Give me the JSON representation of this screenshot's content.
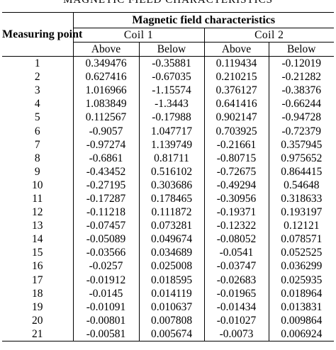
{
  "caption": "MAGNETIC FIELD CHARACTERISTICS",
  "header": {
    "point": "Measuring point",
    "group": "Magnetic field characteristics",
    "coil1": "Coil 1",
    "coil2": "Coil 2",
    "above": "Above",
    "below": "Below"
  },
  "rows": [
    [
      "1",
      "0.349476",
      "-0.35881",
      "0.119434",
      "-0.12019"
    ],
    [
      "2",
      "0.627416",
      "-0.67035",
      "0.210215",
      "-0.21282"
    ],
    [
      "3",
      "1.016966",
      "-1.15574",
      "0.376127",
      "-0.38376"
    ],
    [
      "4",
      "1.083849",
      "-1.3443",
      "0.641416",
      "-0.66244"
    ],
    [
      "5",
      "0.112567",
      "-0.17988",
      "0.902147",
      "-0.94728"
    ],
    [
      "6",
      "-0.9057",
      "1.047717",
      "0.703925",
      "-0.72379"
    ],
    [
      "7",
      "-0.97274",
      "1.139749",
      "-0.21661",
      "0.357945"
    ],
    [
      "8",
      "-0.6861",
      "0.81711",
      "-0.80715",
      "0.975652"
    ],
    [
      "9",
      "-0.43452",
      "0.516102",
      "-0.72675",
      "0.864415"
    ],
    [
      "10",
      "-0.27195",
      "0.303686",
      "-0.49294",
      "0.54648"
    ],
    [
      "11",
      "-0.17287",
      "0.178465",
      "-0.30956",
      "0.318633"
    ],
    [
      "12",
      "-0.11218",
      "0.111872",
      "-0.19371",
      "0.193197"
    ],
    [
      "13",
      "-0.07457",
      "0.073281",
      "-0.12322",
      "0.12121"
    ],
    [
      "14",
      "-0.05089",
      "0.049674",
      "-0.08052",
      "0.078571"
    ],
    [
      "15",
      "-0.03566",
      "0.034689",
      "-0.0541",
      "0.052525"
    ],
    [
      "16",
      "-0.0257",
      "0.025008",
      "-0.03747",
      "0.036299"
    ],
    [
      "17",
      "-0.01912",
      "0.018595",
      "-0.02683",
      "0.025935"
    ],
    [
      "18",
      "-0.0145",
      "0.014119",
      "-0.01965",
      "0.018964"
    ],
    [
      "19",
      "-0.01091",
      "0.010637",
      "-0.01434",
      "0.013831"
    ],
    [
      "20",
      "-0.00801",
      "0.007808",
      "-0.01027",
      "0.009864"
    ],
    [
      "21",
      "-0.00581",
      "0.005674",
      "-0.0073",
      "0.006924"
    ]
  ]
}
